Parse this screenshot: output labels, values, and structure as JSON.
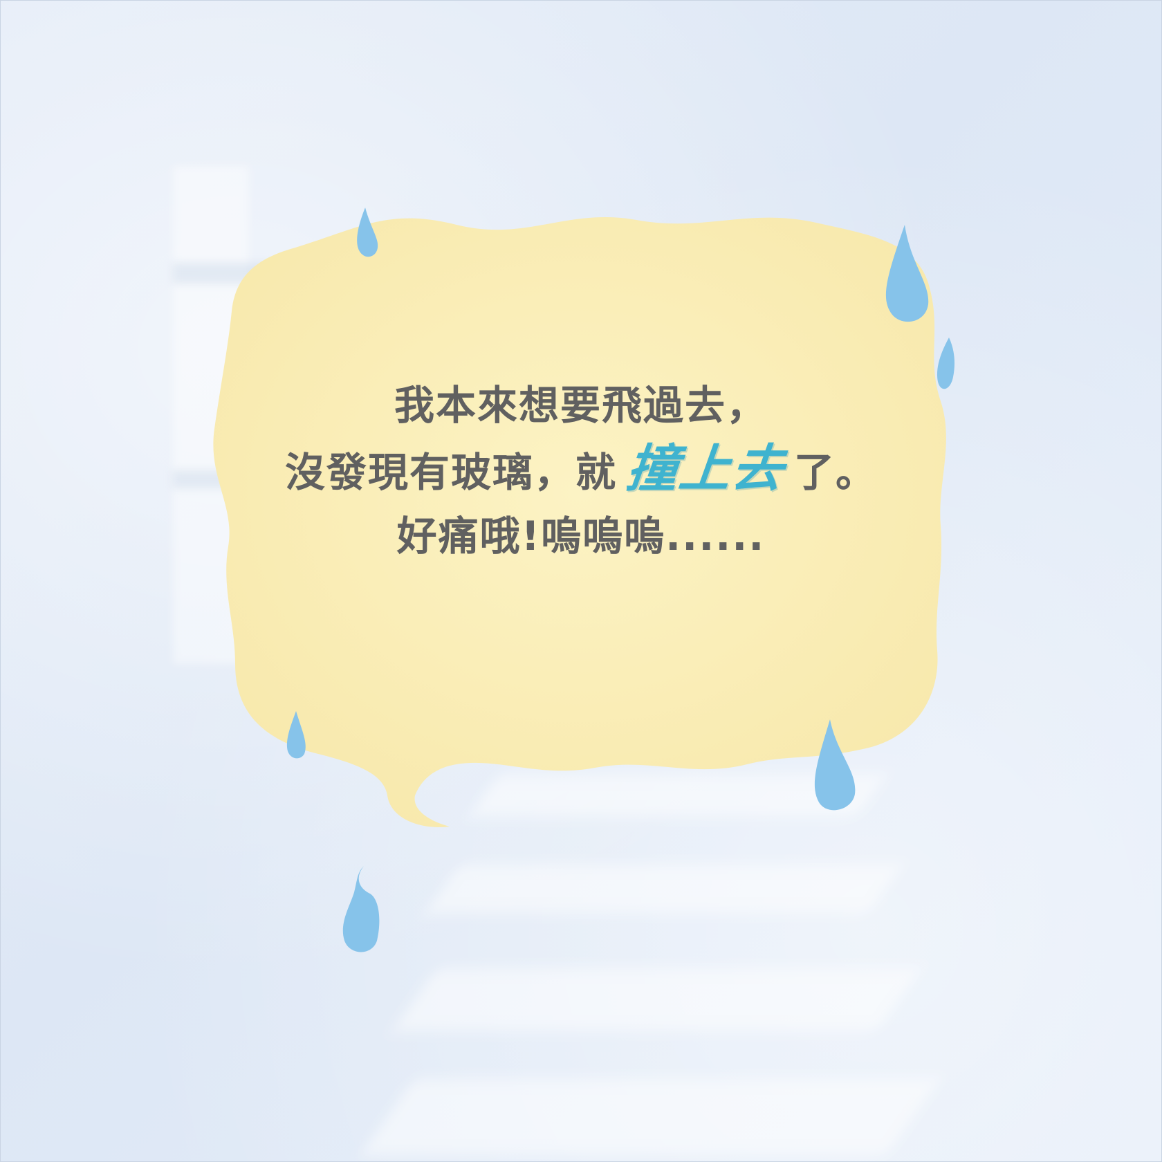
{
  "scene": {
    "background_color": "#e1eaf6",
    "bubble_color": "#fbefb8",
    "drop_color": "#86c3ea",
    "text_color": "#606060",
    "highlight_color": "#3fb3cf"
  },
  "speech": {
    "line1": "我本來想要飛過去，",
    "line2_prefix": "沒發現有玻璃，就",
    "line2_highlight": "撞上去",
    "line2_suffix": "了。",
    "line3": "好痛哦!嗚嗚嗚......"
  },
  "icons": {
    "drop": "water-drop-icon",
    "bubble": "speech-bubble"
  }
}
